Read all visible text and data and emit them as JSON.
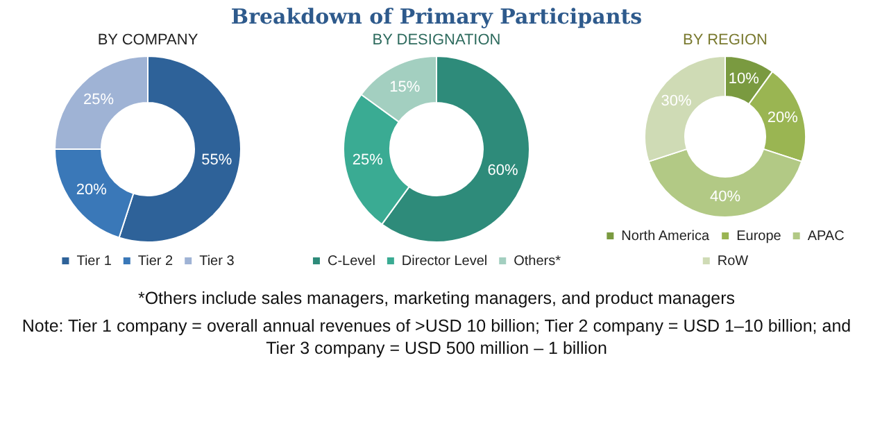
{
  "chart_data": [
    {
      "type": "other",
      "title": "Breakdown of Primary Participants"
    },
    {
      "type": "donut",
      "title": "BY COMPANY",
      "categories": [
        "Tier 1",
        "Tier 2",
        "Tier 3"
      ],
      "values": [
        55,
        20,
        25
      ],
      "colors": [
        "#2e6299",
        "#3a78b8",
        "#9fb3d5"
      ],
      "value_labels": [
        "55%",
        "20%",
        "25%"
      ],
      "legend": "bottom"
    },
    {
      "type": "donut",
      "title": "BY DESIGNATION",
      "categories": [
        "C-Level",
        "Director Level",
        "Others*"
      ],
      "values": [
        60,
        25,
        15
      ],
      "colors": [
        "#2e8b7a",
        "#3aab93",
        "#a3cfc0"
      ],
      "value_labels": [
        "60%",
        "25%",
        "15%"
      ],
      "legend": "bottom"
    },
    {
      "type": "donut",
      "title": "BY REGION",
      "categories": [
        "North America",
        "Europe",
        "APAC",
        "RoW"
      ],
      "values": [
        10,
        20,
        40,
        30
      ],
      "colors": [
        "#7a9a40",
        "#9ab552",
        "#b2c985",
        "#cfdbb5"
      ],
      "value_labels": [
        "10%",
        "20%",
        "40%",
        "30%"
      ],
      "legend": "bottom"
    },
    {
      "type": "other",
      "annotations": [
        "*Others include sales managers, marketing managers, and product managers",
        "Note: Tier 1 company = overall annual revenues of >USD 10 billion; Tier 2 company = USD 1–10 billion; and Tier 3 company = USD 500 million – 1 billion"
      ]
    }
  ]
}
